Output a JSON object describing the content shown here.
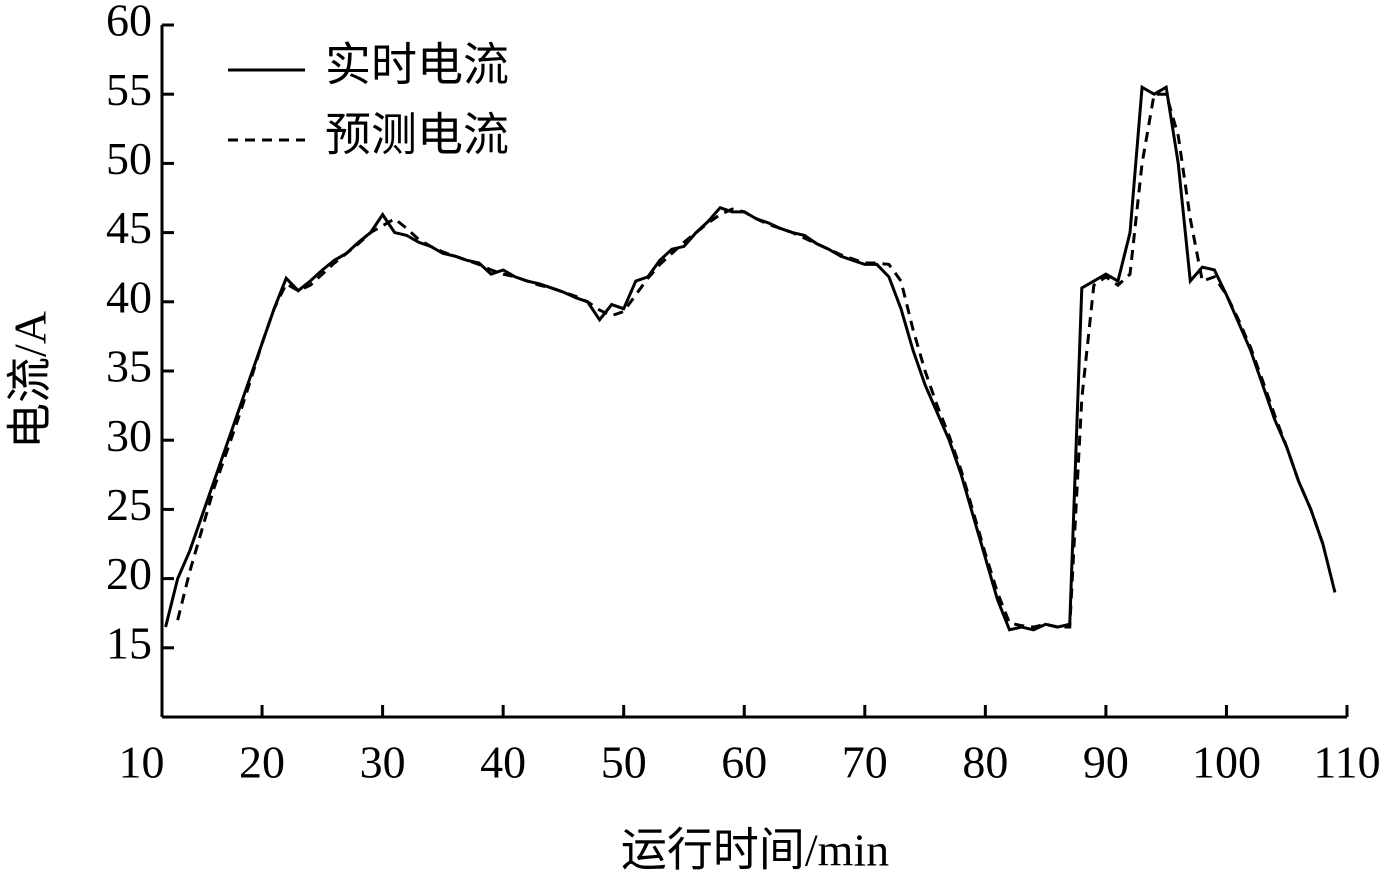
{
  "chart_data": {
    "type": "line",
    "xlabel": "运行时间/min",
    "ylabel": "电流/A",
    "x": [
      12,
      13,
      14,
      15,
      16,
      17,
      18,
      19,
      20,
      21,
      22,
      23,
      24,
      25,
      26,
      27,
      28,
      29,
      30,
      31,
      32,
      33,
      34,
      35,
      36,
      37,
      38,
      39,
      40,
      41,
      42,
      43,
      44,
      45,
      46,
      47,
      48,
      49,
      50,
      51,
      52,
      53,
      54,
      55,
      56,
      57,
      58,
      59,
      60,
      61,
      62,
      63,
      64,
      65,
      66,
      67,
      68,
      69,
      70,
      71,
      72,
      73,
      74,
      75,
      76,
      77,
      78,
      79,
      80,
      81,
      82,
      83,
      84,
      85,
      86,
      87,
      88,
      89,
      90,
      91,
      92,
      93,
      94,
      95,
      96,
      97,
      98,
      99,
      100,
      101,
      102,
      103,
      104,
      105,
      106,
      107,
      108,
      109
    ],
    "series": [
      {
        "name": "实时电流",
        "color": "#000000",
        "dash": "solid",
        "values": [
          16.5,
          20,
          22,
          24.5,
          27,
          29.5,
          32,
          34.5,
          37,
          39.5,
          41.7,
          40.8,
          41.5,
          42.3,
          43,
          43.5,
          44.3,
          45,
          46.3,
          45,
          44.8,
          44.3,
          44,
          43.5,
          43.3,
          43,
          42.8,
          42,
          42.3,
          41.8,
          41.5,
          41.3,
          41,
          40.7,
          40.3,
          40,
          38.7,
          39.8,
          39.5,
          41.5,
          41.8,
          43,
          43.8,
          44,
          45,
          45.8,
          46.8,
          46.5,
          46.5,
          46,
          45.7,
          45.3,
          45,
          44.8,
          44.2,
          43.8,
          43.3,
          43,
          42.7,
          42.7,
          41.8,
          39.5,
          36.5,
          34,
          32,
          30,
          27.5,
          24.5,
          21.5,
          18.5,
          16.3,
          16.5,
          16.3,
          16.7,
          16.5,
          16.7,
          41,
          41.5,
          42,
          41.5,
          45,
          55.5,
          55,
          55.5,
          50,
          41.5,
          42.5,
          42.3,
          40.5,
          38.5,
          36.5,
          34,
          31.5,
          29.5,
          27,
          25,
          22.5,
          19
        ]
      },
      {
        "name": "预测电流",
        "color": "#000000",
        "dash": "dashed",
        "values": [
          null,
          17,
          20.5,
          23.5,
          26.5,
          29,
          31.5,
          34.2,
          37,
          39.5,
          41.3,
          40.8,
          41.2,
          42,
          42.8,
          43.5,
          44.2,
          45,
          45.5,
          46,
          45.3,
          44.5,
          44,
          43.6,
          43.3,
          43,
          42.7,
          42.3,
          42,
          41.8,
          41.5,
          41.2,
          41,
          40.7,
          40.4,
          40,
          39.4,
          39,
          39.3,
          40.5,
          41.7,
          42.7,
          43.5,
          44.3,
          45,
          45.7,
          46.3,
          46.7,
          46.5,
          46,
          45.6,
          45.3,
          45,
          44.6,
          44.2,
          43.8,
          43.4,
          43.1,
          42.8,
          42.8,
          42.7,
          41.5,
          38,
          35,
          32.5,
          30.3,
          27.8,
          24.8,
          21.8,
          19,
          16.8,
          16.6,
          16.5,
          16.7,
          16.5,
          16.5,
          33,
          41.2,
          41.8,
          41.2,
          42,
          50,
          55,
          55,
          52,
          46,
          41.5,
          41.8,
          40.5,
          38.7,
          36.7,
          34.3,
          31.8,
          29.5,
          27,
          25,
          22.5,
          null
        ]
      }
    ],
    "xlim": [
      11.7,
      110
    ],
    "xticks": [
      10,
      20,
      30,
      40,
      50,
      60,
      70,
      80,
      90,
      100,
      110
    ],
    "ylim": [
      10,
      60
    ],
    "yticks": [
      15,
      20,
      25,
      30,
      35,
      40,
      45,
      50,
      55,
      60
    ],
    "legend": "top-left",
    "grid": false
  }
}
